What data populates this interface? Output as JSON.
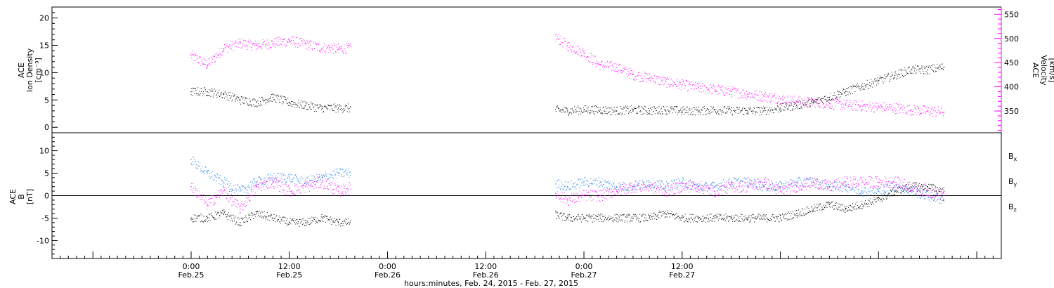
{
  "chart_data": [
    {
      "type": "scatter",
      "panel": "top",
      "ylabel_left": [
        "ACE",
        "Ion Density",
        "[cm⁻³]"
      ],
      "ylabel_right": [
        "ACE",
        "Velocity",
        "[km/s]"
      ],
      "ylim_left": [
        -1,
        22
      ],
      "ylim_right": [
        305,
        565
      ],
      "yticks_left": [
        0,
        5,
        10,
        15,
        20
      ],
      "yticks_right": [
        350,
        400,
        450,
        500,
        550
      ],
      "colors": {
        "density": "#000000",
        "velocity": "#ff00ff"
      },
      "series": [
        {
          "name": "Ion Density",
          "axis": "left",
          "color": "#000000",
          "points": [
            [
              0.0,
              6.5
            ],
            [
              2,
              6.5
            ],
            [
              4,
              6.0
            ],
            [
              6,
              5.0
            ],
            [
              8,
              4.5
            ],
            [
              10,
              5.5
            ],
            [
              12,
              4.5
            ],
            [
              14,
              4.0
            ],
            [
              16,
              3.5
            ],
            [
              18,
              3.5
            ],
            [
              20,
              3.5
            ],
            [
              22,
              3.0
            ],
            [
              24,
              3.2
            ],
            [
              26,
              3.0
            ],
            [
              28,
              3.5
            ],
            [
              30,
              3.0
            ],
            [
              32,
              3.0
            ],
            [
              34,
              3.5
            ],
            [
              36,
              3.5
            ],
            [
              38,
              3.5
            ],
            [
              40,
              3.5
            ],
            [
              42,
              3.2
            ],
            [
              44,
              3.2
            ],
            [
              46,
              3.0
            ],
            [
              48,
              3.2
            ],
            [
              50,
              3.2
            ],
            [
              52,
              3.0
            ],
            [
              54,
              3.2
            ],
            [
              56,
              3.0
            ],
            [
              58,
              3.2
            ],
            [
              60,
              3.0
            ],
            [
              62,
              3.0
            ],
            [
              64,
              3.2
            ],
            [
              66,
              3.0
            ],
            [
              68,
              3.0
            ],
            [
              70,
              3.0
            ],
            [
              72,
              3.5
            ],
            [
              74,
              4.0
            ],
            [
              76,
              4.5
            ],
            [
              78,
              5.5
            ],
            [
              80,
              6.5
            ],
            [
              82,
              7.5
            ],
            [
              84,
              8.5
            ],
            [
              86,
              9.5
            ],
            [
              88,
              10.5
            ],
            [
              90,
              10.5
            ],
            [
              92,
              11.0
            ]
          ],
          "gap": [
            19.5,
            44.5
          ]
        },
        {
          "name": "Velocity",
          "axis": "right",
          "color": "#ff00ff",
          "points": [
            [
              0,
              465
            ],
            [
              2,
              445
            ],
            [
              4,
              480
            ],
            [
              6,
              490
            ],
            [
              8,
              485
            ],
            [
              10,
              490
            ],
            [
              12,
              495
            ],
            [
              14,
              488
            ],
            [
              16,
              480
            ],
            [
              18,
              478
            ],
            [
              20,
              480
            ],
            [
              22,
              470
            ],
            [
              24,
              460
            ],
            [
              26,
              470
            ],
            [
              28,
              485
            ],
            [
              30,
              475
            ],
            [
              32,
              480
            ],
            [
              34,
              488
            ],
            [
              36,
              490
            ],
            [
              38,
              505
            ],
            [
              40,
              500
            ],
            [
              42,
              490
            ],
            [
              44,
              510
            ],
            [
              46,
              485
            ],
            [
              48,
              470
            ],
            [
              50,
              445
            ],
            [
              52,
              440
            ],
            [
              54,
              425
            ],
            [
              56,
              418
            ],
            [
              58,
              410
            ],
            [
              60,
              404
            ],
            [
              62,
              398
            ],
            [
              64,
              394
            ],
            [
              66,
              390
            ],
            [
              68,
              385
            ],
            [
              70,
              380
            ],
            [
              72,
              375
            ],
            [
              74,
              370
            ],
            [
              76,
              368
            ],
            [
              78,
              365
            ],
            [
              80,
              362
            ],
            [
              82,
              360
            ],
            [
              84,
              358
            ],
            [
              86,
              356
            ],
            [
              88,
              352
            ],
            [
              90,
              350
            ],
            [
              92,
              348
            ]
          ],
          "gap": [
            19.5,
            44.5
          ]
        }
      ]
    },
    {
      "type": "scatter",
      "panel": "bottom",
      "ylabel": [
        "ACE",
        "B",
        "[nT]"
      ],
      "ylim": [
        -14,
        14
      ],
      "yticks": [
        -10,
        -5,
        0,
        5,
        10
      ],
      "legend": [
        {
          "label": "Bx",
          "main": "B",
          "sub": "x",
          "color": "#000000"
        },
        {
          "label": "By",
          "main": "B",
          "sub": "y",
          "color": "#1e7be6"
        },
        {
          "label": "Bz",
          "main": "B",
          "sub": "z",
          "color": "#ff00ff"
        }
      ],
      "series": [
        {
          "name": "Bx",
          "color": "#000000",
          "points": [
            [
              0,
              -5
            ],
            [
              2,
              -5
            ],
            [
              4,
              -4
            ],
            [
              6,
              -6
            ],
            [
              8,
              -4
            ],
            [
              10,
              -5
            ],
            [
              12,
              -6
            ],
            [
              14,
              -6
            ],
            [
              16,
              -5
            ],
            [
              18,
              -6
            ],
            [
              20,
              -6
            ],
            [
              22,
              -6
            ],
            [
              24,
              -5
            ],
            [
              26,
              -6
            ],
            [
              28,
              -6
            ],
            [
              30,
              -4
            ],
            [
              32,
              -3
            ],
            [
              34,
              -5
            ],
            [
              36,
              -6
            ],
            [
              38,
              -5
            ],
            [
              40,
              -6
            ],
            [
              42,
              -6
            ],
            [
              44,
              -4
            ],
            [
              46,
              -5
            ],
            [
              48,
              -5
            ],
            [
              50,
              -5
            ],
            [
              52,
              -5
            ],
            [
              54,
              -5
            ],
            [
              56,
              -5
            ],
            [
              58,
              -4
            ],
            [
              60,
              -5
            ],
            [
              62,
              -5
            ],
            [
              64,
              -5
            ],
            [
              66,
              -5
            ],
            [
              68,
              -5
            ],
            [
              70,
              -5
            ],
            [
              72,
              -5
            ],
            [
              74,
              -4
            ],
            [
              76,
              -3
            ],
            [
              78,
              -2
            ],
            [
              80,
              -3
            ],
            [
              82,
              -2
            ],
            [
              84,
              -1
            ],
            [
              86,
              1
            ],
            [
              88,
              2
            ],
            [
              90,
              2
            ],
            [
              92,
              1
            ]
          ],
          "gap": [
            19.5,
            44.5
          ]
        },
        {
          "name": "By",
          "color": "#1e7be6",
          "points": [
            [
              0,
              8
            ],
            [
              2,
              5
            ],
            [
              4,
              3
            ],
            [
              6,
              1
            ],
            [
              8,
              3
            ],
            [
              10,
              4
            ],
            [
              12,
              4
            ],
            [
              14,
              3
            ],
            [
              16,
              4
            ],
            [
              18,
              5
            ],
            [
              20,
              5
            ],
            [
              22,
              3
            ],
            [
              24,
              4
            ],
            [
              26,
              5
            ],
            [
              28,
              4
            ],
            [
              30,
              3
            ],
            [
              32,
              2
            ],
            [
              34,
              4
            ],
            [
              36,
              5
            ],
            [
              38,
              4
            ],
            [
              40,
              4
            ],
            [
              42,
              3
            ],
            [
              44,
              3
            ],
            [
              46,
              2
            ],
            [
              48,
              3
            ],
            [
              50,
              3
            ],
            [
              52,
              2
            ],
            [
              54,
              2
            ],
            [
              56,
              3
            ],
            [
              58,
              2
            ],
            [
              60,
              3
            ],
            [
              62,
              2
            ],
            [
              64,
              2
            ],
            [
              66,
              3
            ],
            [
              68,
              3
            ],
            [
              70,
              2
            ],
            [
              72,
              2
            ],
            [
              74,
              3
            ],
            [
              76,
              3
            ],
            [
              78,
              2
            ],
            [
              80,
              2
            ],
            [
              82,
              1
            ],
            [
              84,
              1
            ],
            [
              86,
              2
            ],
            [
              88,
              1
            ],
            [
              90,
              0
            ],
            [
              92,
              -1
            ]
          ],
          "gap": [
            19.5,
            44.5
          ]
        },
        {
          "name": "Bz",
          "color": "#ff00ff",
          "points": [
            [
              0,
              2
            ],
            [
              2,
              -2
            ],
            [
              4,
              1
            ],
            [
              6,
              -3
            ],
            [
              8,
              2
            ],
            [
              10,
              3
            ],
            [
              12,
              1
            ],
            [
              14,
              2
            ],
            [
              16,
              3
            ],
            [
              18,
              1
            ],
            [
              20,
              2
            ],
            [
              22,
              3
            ],
            [
              24,
              -2
            ],
            [
              26,
              2
            ],
            [
              28,
              2
            ],
            [
              30,
              1
            ],
            [
              32,
              3
            ],
            [
              34,
              1
            ],
            [
              36,
              1
            ],
            [
              38,
              2
            ],
            [
              40,
              2
            ],
            [
              42,
              2
            ],
            [
              44,
              1
            ],
            [
              46,
              -1
            ],
            [
              48,
              0
            ],
            [
              50,
              0
            ],
            [
              52,
              1
            ],
            [
              54,
              2
            ],
            [
              56,
              2
            ],
            [
              58,
              1
            ],
            [
              60,
              2
            ],
            [
              62,
              2
            ],
            [
              64,
              1
            ],
            [
              66,
              2
            ],
            [
              68,
              2
            ],
            [
              70,
              3
            ],
            [
              72,
              1
            ],
            [
              74,
              2
            ],
            [
              76,
              3
            ],
            [
              78,
              2
            ],
            [
              80,
              3
            ],
            [
              82,
              3
            ],
            [
              84,
              3
            ],
            [
              86,
              3
            ],
            [
              88,
              2
            ],
            [
              90,
              1
            ],
            [
              92,
              0
            ]
          ],
          "gap": [
            19.5,
            44.5
          ]
        }
      ]
    }
  ],
  "x_axis": {
    "xlim": [
      -17,
      99
    ],
    "ticks": [
      {
        "x": 0,
        "time": "0:00",
        "date": "Feb.25"
      },
      {
        "x": 12,
        "time": "12:00",
        "date": "Feb.25"
      },
      {
        "x": 24,
        "time": "0:00",
        "date": "Feb.26"
      },
      {
        "x": 36,
        "time": "12:00",
        "date": "Feb.26"
      },
      {
        "x": 48,
        "time": "0:00",
        "date": "Feb.27"
      },
      {
        "x": 60,
        "time": "12:00",
        "date": "Feb.27"
      }
    ],
    "xlabel": "hours:minutes, Feb. 24, 2015 - Feb. 27, 2015"
  }
}
